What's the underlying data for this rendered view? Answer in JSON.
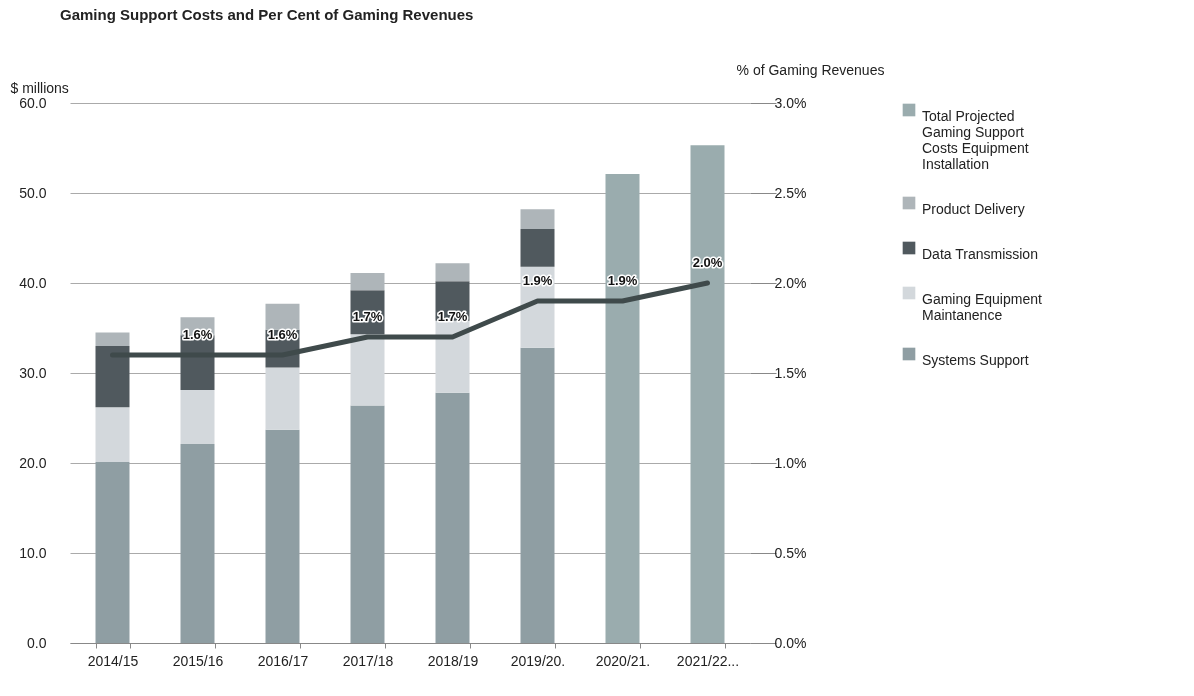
{
  "chart_data": {
    "type": "bar",
    "title": "Gaming Support Costs and Per Cent of Gaming Revenues",
    "ylabel": "$ millions",
    "y2label": "% of Gaming Revenues",
    "categories": [
      "2014/15",
      "2015/16",
      "2016/17",
      "2017/18",
      "2018/19",
      "2019/20.",
      "2020/21.",
      "2021/22..."
    ],
    "stacked": true,
    "series": [
      {
        "name": "Systems Support",
        "color": "#8f9ea3",
        "values": [
          20.1,
          22.1,
          23.7,
          26.4,
          27.8,
          32.8,
          null,
          null
        ]
      },
      {
        "name": "Gaming Equipment Maintanence",
        "color": "#d3d8dc",
        "values": [
          6.1,
          6.0,
          6.9,
          7.9,
          8.0,
          9.0,
          null,
          null
        ]
      },
      {
        "name": "Data Transmission",
        "color": "#50595e",
        "values": [
          6.8,
          6.1,
          4.2,
          4.9,
          4.4,
          4.2,
          null,
          null
        ]
      },
      {
        "name": "Product Delivery",
        "color": "#aeb5b9",
        "values": [
          1.5,
          2.0,
          2.9,
          1.9,
          2.0,
          2.2,
          null,
          null
        ]
      },
      {
        "name": "Total Projected Gaming Support Costs Equipment Installation",
        "color": "#9aacae",
        "values": [
          null,
          null,
          null,
          null,
          null,
          null,
          52.1,
          55.3
        ]
      },
      {
        "type": "line",
        "axis": "y2",
        "color": "#3f4a4b",
        "values": [
          1.6,
          1.6,
          1.6,
          1.7,
          1.7,
          1.9,
          1.9,
          2.0
        ],
        "value_labels": [
          null,
          "1.6%",
          "1.6%",
          "1.7%",
          "1.7%",
          "1.9%",
          "1.9%",
          "2.0%"
        ]
      }
    ],
    "ylim": [
      0,
      60
    ],
    "yticks": [
      {
        "value": 0,
        "label": "0.0"
      },
      {
        "value": 10,
        "label": "10.0"
      },
      {
        "value": 20,
        "label": "20.0"
      },
      {
        "value": 30,
        "label": "30.0"
      },
      {
        "value": 40,
        "label": "40.0"
      },
      {
        "value": 50,
        "label": "50.0"
      },
      {
        "value": 60,
        "label": "60.0"
      }
    ],
    "y2lim": [
      0,
      3
    ],
    "y2ticks": [
      {
        "value": 0,
        "label": "0.0%"
      },
      {
        "value": 0.5,
        "label": "0.5%"
      },
      {
        "value": 1,
        "label": "1.0%"
      },
      {
        "value": 1.5,
        "label": "1.5%"
      },
      {
        "value": 2,
        "label": "2.0%"
      },
      {
        "value": 2.5,
        "label": "2.5%"
      },
      {
        "value": 3,
        "label": "3.0%"
      }
    ],
    "grid": "y",
    "legend": "right"
  }
}
